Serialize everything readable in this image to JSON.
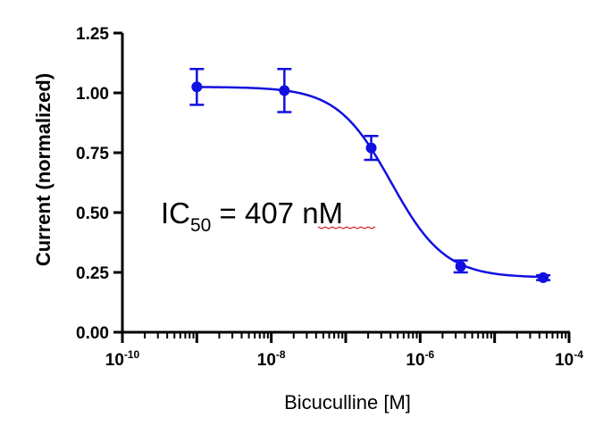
{
  "chart_data": {
    "type": "scatter",
    "xlabel": "Bicuculline [M]",
    "ylabel": "Current (normalized)",
    "xscale": "log",
    "xlim": [
      1e-10,
      0.0001
    ],
    "ylim": [
      0,
      1.25
    ],
    "y_ticks": [
      "0.00",
      "0.25",
      "0.50",
      "0.75",
      "1.00",
      "1.25"
    ],
    "x_ticks": [
      {
        "base": "10",
        "exp": "-10"
      },
      {
        "base": "10",
        "exp": "-8"
      },
      {
        "base": "10",
        "exp": "-6"
      },
      {
        "base": "10",
        "exp": "-4"
      }
    ],
    "annotation": {
      "prefix": "IC",
      "sub": "50",
      "suffix": " = 407 nM"
    },
    "series": [
      {
        "x": [
          1e-09,
          1.5e-08,
          2.2e-07,
          3.5e-06,
          4.5e-05
        ],
        "y": [
          1.025,
          1.01,
          0.77,
          0.275,
          0.228
        ],
        "err": [
          0.075,
          0.09,
          0.05,
          0.025,
          0.01
        ],
        "fit": {
          "model": "sigmoidal dose-response",
          "top": 1.025,
          "bottom": 0.228,
          "ic50": 4.07e-07,
          "hill": 1.2
        },
        "color": "#1010e0"
      }
    ]
  }
}
